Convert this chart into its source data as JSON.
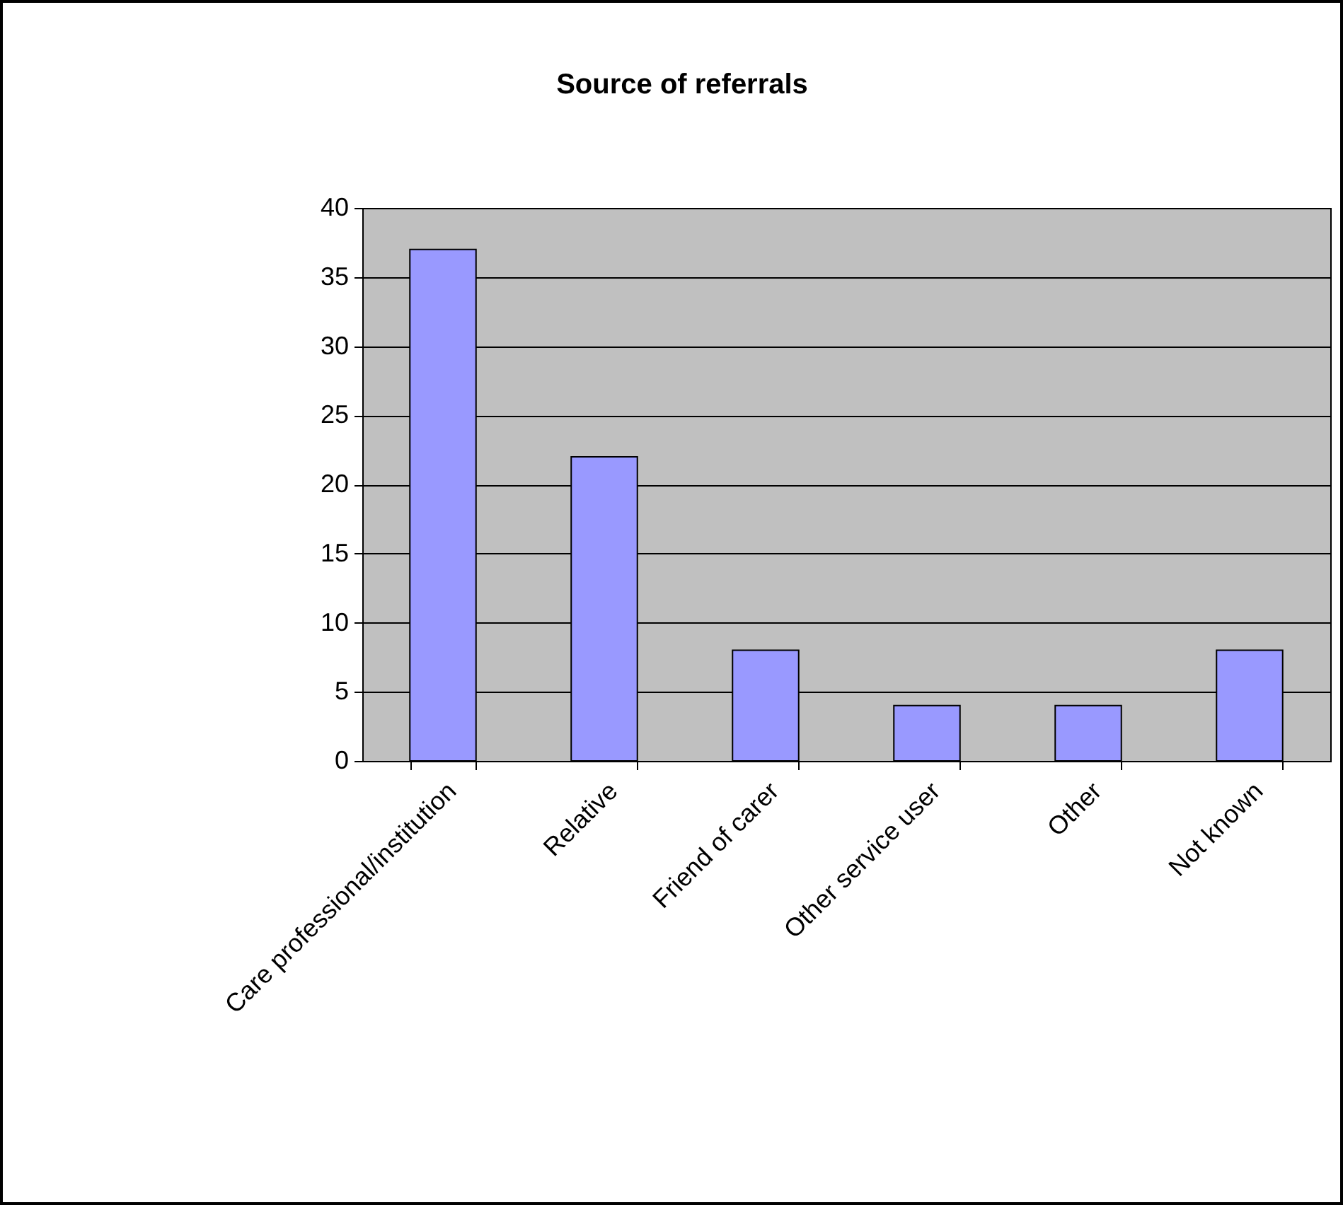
{
  "chart_data": {
    "type": "bar",
    "title": "Source of referrals",
    "categories": [
      "Care professional/institution",
      "Relative",
      "Friend of carer",
      "Other service user",
      "Other",
      "Not known"
    ],
    "values": [
      37,
      22,
      8,
      4,
      4,
      8
    ],
    "color": "#9999ff",
    "ylim": [
      0,
      40
    ],
    "yticks": [
      0,
      5,
      10,
      15,
      20,
      25,
      30,
      35,
      40
    ],
    "grid": "y"
  }
}
